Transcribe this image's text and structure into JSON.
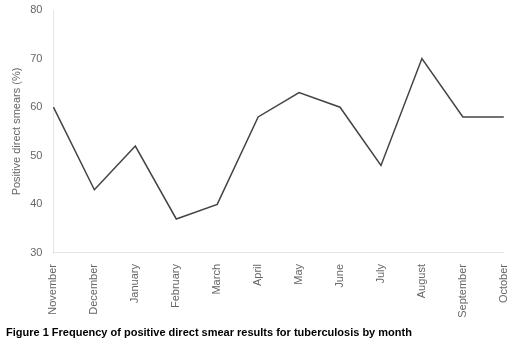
{
  "chart_data": {
    "type": "line",
    "title": "Figure 1 Frequency of positive direct smear results for tuberculosis by month",
    "y_label": "Positive direct smears (%)",
    "categories": [
      "November",
      "December",
      "January",
      "February",
      "March",
      "April",
      "May",
      "June",
      "July",
      "August",
      "September",
      "October"
    ],
    "values": [
      60,
      43,
      52,
      37,
      40,
      58,
      63,
      60,
      48,
      70,
      58,
      58
    ],
    "color": "#444444",
    "ylim": [
      30,
      80
    ],
    "yticks": [
      30,
      40,
      50,
      60,
      70,
      80
    ],
    "grid": false
  }
}
